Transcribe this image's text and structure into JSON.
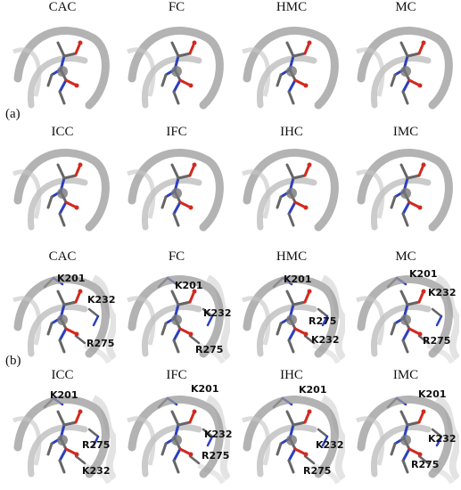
{
  "panel_labels": {
    "a": "(a)",
    "b": "(b)"
  },
  "row_titles": {
    "row1": [
      "CAC",
      "FC",
      "HMC",
      "MC"
    ],
    "row2": [
      "ICC",
      "IFC",
      "IHC",
      "IMC"
    ],
    "row3": [
      "CAC",
      "FC",
      "HMC",
      "MC"
    ],
    "row4": [
      "ICC",
      "IFC",
      "IHC",
      "IMC"
    ]
  },
  "residue_labels": {
    "row3": [
      [
        "K201",
        "K232",
        "R275"
      ],
      [
        "K201",
        "K232",
        "R275"
      ],
      [
        "K201",
        "R275",
        "K232"
      ],
      [
        "K201",
        "K232",
        "R275"
      ]
    ],
    "row4": [
      [
        "K201",
        "R275",
        "K232"
      ],
      [
        "K201",
        "K232",
        "R275"
      ],
      [
        "K201",
        "K232",
        "R275"
      ],
      [
        "K201",
        "K232",
        "R275"
      ]
    ]
  },
  "colors": {
    "backbone": "#8a8a8a",
    "carbon": "#6e6e6e",
    "nitrogen": "#2b3fbf",
    "oxygen": "#d12a1f",
    "protein": "#d6d6d6"
  }
}
